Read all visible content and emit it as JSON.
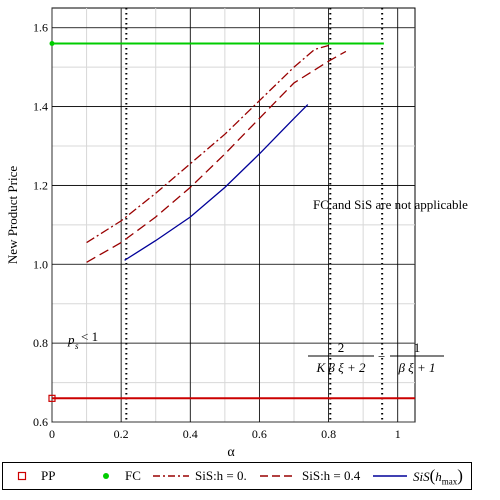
{
  "chart_data": {
    "type": "line",
    "xlabel": "α",
    "ylabel": "New Product Price",
    "xlim": [
      0,
      1.05
    ],
    "ylim": [
      0.6,
      1.65
    ],
    "xticks": [
      0,
      0.2,
      0.4,
      0.6,
      0.8,
      1
    ],
    "xtick_labels": [
      "0",
      "0.2",
      "0.4",
      "0.6",
      "0.8",
      "1"
    ],
    "yticks": [
      0.6,
      0.8,
      1.0,
      1.2,
      1.4,
      1.6
    ],
    "ytick_labels": [
      "0.6",
      "0.8",
      "1.0",
      "1.2",
      "1.4",
      "1.6"
    ],
    "grid": true,
    "legend_position": "bottom",
    "series": [
      {
        "name": "PP",
        "color": "#cc0000",
        "marker": "square-open",
        "x": [
          0,
          0.6,
          1.05
        ],
        "y": [
          0.66,
          0.66,
          0.66
        ]
      },
      {
        "name": "FC",
        "color": "#00cc00",
        "marker": "dot",
        "x": [
          0,
          0.5,
          0.96
        ],
        "y": [
          1.56,
          1.56,
          1.56
        ]
      },
      {
        "name": "SiS:h = 0.",
        "color": "#990000",
        "dash": "dashdot",
        "x": [
          0.1,
          0.2,
          0.3,
          0.4,
          0.5,
          0.6,
          0.7,
          0.76,
          0.8
        ],
        "y": [
          1.055,
          1.11,
          1.18,
          1.255,
          1.33,
          1.415,
          1.5,
          1.545,
          1.555
        ]
      },
      {
        "name": "SiS:h = 0.4",
        "color": "#990000",
        "dash": "longdash",
        "x": [
          0.1,
          0.2,
          0.3,
          0.4,
          0.5,
          0.6,
          0.7,
          0.8,
          0.85
        ],
        "y": [
          1.005,
          1.055,
          1.12,
          1.195,
          1.28,
          1.37,
          1.46,
          1.515,
          1.54
        ]
      },
      {
        "name": "SiS(h_max)",
        "color": "#000099",
        "dash": "solid",
        "x": [
          0.21,
          0.3,
          0.4,
          0.5,
          0.6,
          0.7,
          0.74
        ],
        "y": [
          1.01,
          1.06,
          1.12,
          1.195,
          1.28,
          1.37,
          1.405
        ]
      }
    ],
    "vlines": [
      {
        "x": 0.215,
        "style": "dotted"
      },
      {
        "x": 0.805,
        "style": "dotted"
      },
      {
        "x": 0.955,
        "style": "dotted"
      }
    ],
    "annotations": [
      {
        "text": "FC and SiS are not applicable",
        "x": 0.77,
        "y": 1.25
      },
      {
        "text": "p",
        "sub": "s",
        "rest": " < 1",
        "x": 0.05,
        "y": 0.8
      },
      {
        "text_formula": "2/(Kβξ+2) − 1/(βξ+1)",
        "x": 0.77,
        "y": 0.74
      }
    ]
  },
  "legend": {
    "pp": "PP",
    "fc": "FC",
    "sis0": "SiS:h = 0.",
    "sis04": "SiS:h = 0.4",
    "sishmax_main": "SiS",
    "sishmax_arg": "h",
    "sishmax_sub": "max"
  },
  "annotation_text": {
    "na": "FC and SiS are not applicable",
    "ps_main": "p",
    "ps_sub": "s",
    "ps_rest": " < 1",
    "frac1_num": "2",
    "frac1_den": "K β ξ + 2",
    "frac2_num": "1",
    "frac2_den": "β ξ + 1",
    "minus": "−"
  }
}
